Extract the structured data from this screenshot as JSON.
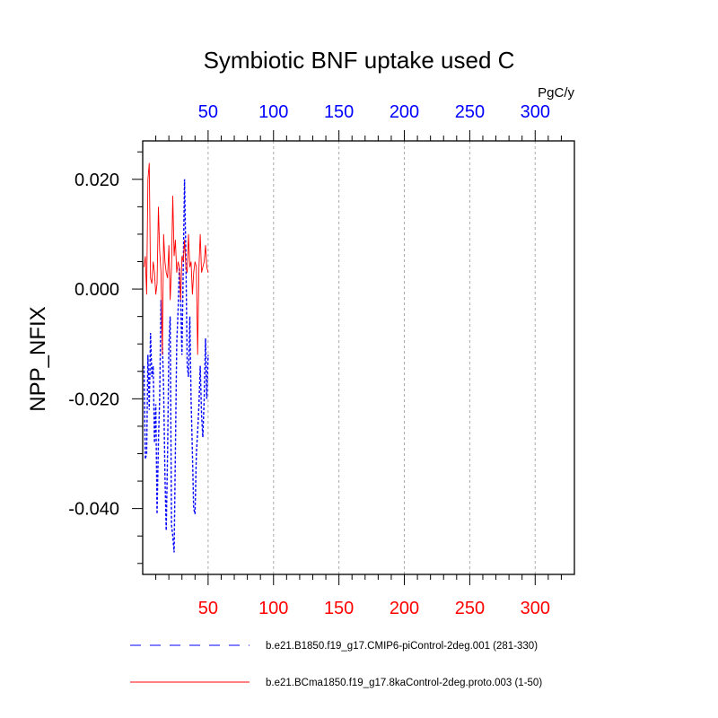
{
  "chart_data": {
    "type": "line",
    "title": "Symbiotic BNF uptake used C",
    "ylabel": "NPP_NFIX",
    "units": "PgC/y",
    "xlim": [
      0,
      330
    ],
    "ylim": [
      -0.052,
      0.027
    ],
    "x_ticks": [
      50,
      100,
      150,
      200,
      250,
      300
    ],
    "y_ticks": [
      0.02,
      0.0,
      -0.02,
      -0.04
    ],
    "y_tick_labels": [
      "0.020",
      "0.000",
      "-0.020",
      "-0.040"
    ],
    "grid_x": true,
    "legend_position": "bottom",
    "colors": {
      "top_axis_labels": "#0000ff",
      "bottom_axis_labels": "#ff0000"
    },
    "series": [
      {
        "name": "b.e21.B1850.f19_g17.CMIP6-piControl-2deg.001 (281-330)",
        "color": "#0000ff",
        "dash": "dashed",
        "x": [
          1,
          2,
          3,
          4,
          5,
          6,
          7,
          8,
          9,
          10,
          11,
          12,
          13,
          14,
          15,
          16,
          17,
          18,
          19,
          20,
          21,
          22,
          23,
          24,
          25,
          26,
          27,
          28,
          29,
          30,
          31,
          32,
          33,
          34,
          35,
          36,
          37,
          38,
          39,
          40,
          41,
          42,
          43,
          44,
          45,
          46,
          47,
          48,
          49,
          50
        ],
        "values": [
          -0.014,
          -0.031,
          -0.03,
          -0.012,
          -0.022,
          -0.008,
          -0.016,
          -0.014,
          -0.028,
          -0.021,
          -0.041,
          -0.028,
          -0.02,
          -0.002,
          -0.01,
          -0.018,
          -0.034,
          -0.044,
          -0.03,
          -0.01,
          -0.005,
          -0.043,
          -0.045,
          -0.048,
          -0.03,
          -0.01,
          -0.004,
          0.004,
          -0.002,
          -0.012,
          0.004,
          0.02,
          0.006,
          -0.014,
          -0.016,
          -0.005,
          -0.02,
          -0.03,
          -0.04,
          -0.041,
          -0.03,
          -0.026,
          -0.021,
          -0.014,
          -0.023,
          -0.027,
          -0.02,
          -0.009,
          -0.02,
          -0.012
        ]
      },
      {
        "name": "b.e21.BCma1850.f19_g17.8kaControl-2deg.proto.003 (1-50)",
        "color": "#ff0000",
        "dash": "solid",
        "x": [
          1,
          2,
          3,
          4,
          5,
          6,
          7,
          8,
          9,
          10,
          11,
          12,
          13,
          14,
          15,
          16,
          17,
          18,
          19,
          20,
          21,
          22,
          23,
          24,
          25,
          26,
          27,
          28,
          29,
          30,
          31,
          32,
          33,
          34,
          35,
          36,
          37,
          38,
          39,
          40,
          41,
          42,
          43,
          44,
          45,
          46,
          47,
          48,
          49,
          50
        ],
        "values": [
          0.004,
          0.006,
          -0.001,
          0.02,
          0.023,
          0.002,
          0.001,
          0.005,
          0.003,
          -0.001,
          0.001,
          0.015,
          0.007,
          0.003,
          -0.012,
          0.01,
          0.005,
          0.003,
          0.002,
          0.008,
          -0.002,
          0.004,
          0.017,
          0.006,
          0.009,
          0.003,
          0.005,
          0.004,
          -0.002,
          0.006,
          0.005,
          0.009,
          0.004,
          0.003,
          0.01,
          0.004,
          0.005,
          -0.001,
          0.003,
          0.005,
          0.004,
          -0.012,
          0.004,
          0.01,
          0.003,
          0.004,
          0.005,
          0.008,
          0.004,
          0.003
        ]
      }
    ]
  }
}
